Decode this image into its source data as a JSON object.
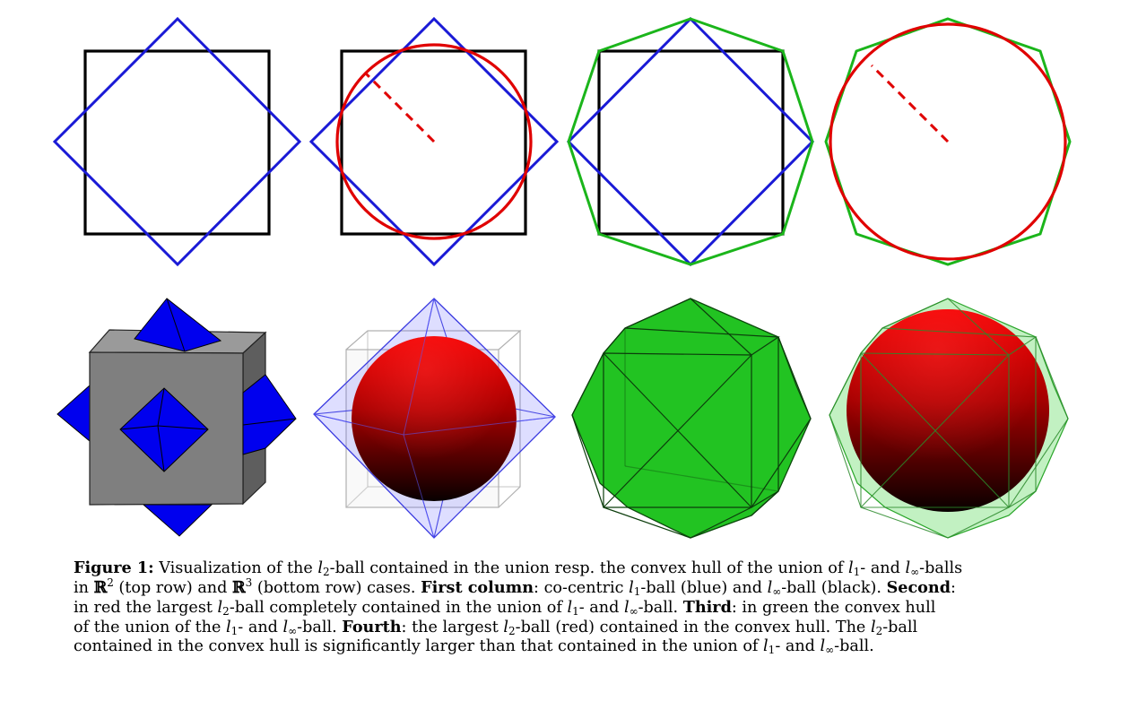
{
  "figure": {
    "colors": {
      "l1_ball": "#1a1ad6",
      "linf_ball": "#000000",
      "l2_ball": "#e00000",
      "convex_hull": "#1bb51b",
      "cube_gray": "#7f7f7f"
    }
  },
  "caption": {
    "figure_label": "Figure 1:",
    "line1": {
      "a": "Visualization of the ",
      "l": "l",
      "s2": "2",
      "b": "-ball contained in the union resp. the convex hull of the union of ",
      "s1": "1",
      "c": "- and ",
      "sinf": "∞",
      "d": "-balls"
    },
    "line2": {
      "a": "in ",
      "R": "ℝ",
      "sup2": "2",
      "b": " (top row) and ",
      "sup3": "3",
      "c": " (bottom row) cases. ",
      "first": "First column",
      "d": ": co-centric ",
      "s1": "1",
      "e": "-ball (blue) and ",
      "sinf": "∞",
      "f": "-ball (black). ",
      "second": "Second",
      "g": ":"
    },
    "line3": {
      "a": "in red the largest ",
      "s2": "2",
      "b": "-ball completely contained in the union of ",
      "s1": "1",
      "c": "- and ",
      "sinf": "∞",
      "d": "-ball. ",
      "third": "Third",
      "e": ": in green the convex hull"
    },
    "line4": {
      "a": "of the union of the ",
      "s1": "1",
      "b": "- and ",
      "sinf": "∞",
      "c": "-ball. ",
      "fourth": "Fourth",
      "d": ": the largest ",
      "s2": "2",
      "e": "-ball (red) contained in the convex hull. The ",
      "s2b": "2",
      "f": "-ball"
    },
    "line5": {
      "a": "contained in the convex hull is significantly larger than that contained in the union of ",
      "s1": "1",
      "b": "- and ",
      "sinf": "∞",
      "c": "-ball."
    }
  }
}
